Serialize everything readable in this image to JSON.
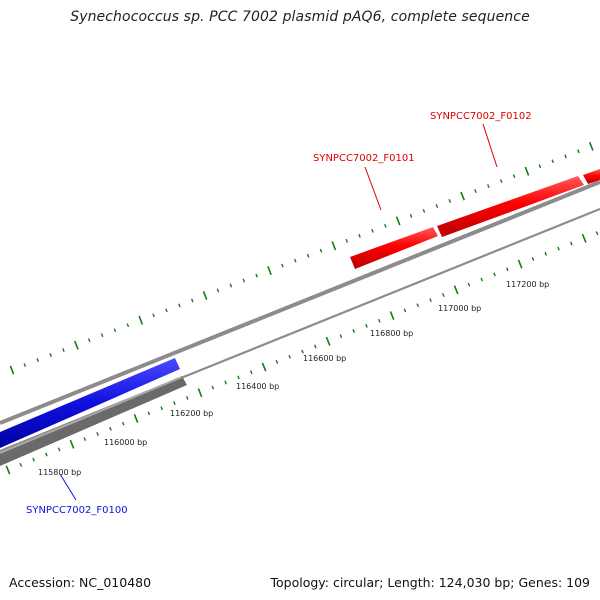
{
  "title": "Synechococcus sp. PCC 7002 plasmid pAQ6, complete sequence",
  "footer": {
    "accession": "Accession: NC_010480",
    "summary": "Topology: circular; Length: 124,030 bp; Genes: 109"
  },
  "colors": {
    "forward_gene": "#ff0000",
    "reverse_gene": "#1010e0",
    "gray_feature": "#666666",
    "backbone": "#8c8c8c",
    "ticks": "#1a7a1a"
  },
  "ruler": [
    {
      "bp": 115800,
      "label": "115800 bp"
    },
    {
      "bp": 116000,
      "label": "116000 bp"
    },
    {
      "bp": 116200,
      "label": "116200 bp"
    },
    {
      "bp": 116400,
      "label": "116400 bp"
    },
    {
      "bp": 116600,
      "label": "116600 bp"
    },
    {
      "bp": 116800,
      "label": "116800 bp"
    },
    {
      "bp": 117000,
      "label": "117000 bp"
    },
    {
      "bp": 117200,
      "label": "117200 bp"
    }
  ],
  "genes": [
    {
      "id": "SYNPCC7002_F0100",
      "label": "SYNPCC7002_F0100",
      "strand": "reverse",
      "color": "#1010e0"
    },
    {
      "id": "SYNPCC7002_F0101",
      "label": "SYNPCC7002_F0101",
      "strand": "forward",
      "color": "#dd0000"
    },
    {
      "id": "SYNPCC7002_F0102",
      "label": "SYNPCC7002_F0102",
      "strand": "forward",
      "color": "#dd0000"
    }
  ]
}
